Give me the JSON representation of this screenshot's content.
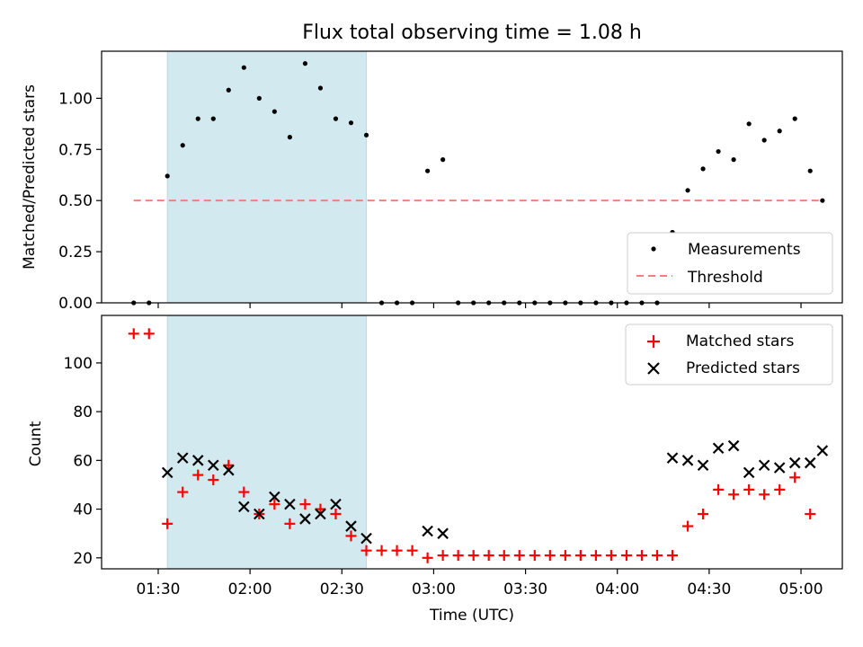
{
  "chart_data": {
    "type": "scatter",
    "title": "Flux total observing time = 1.08 h",
    "xlabel": "Time (UTC)",
    "x_tick_labels": [
      "01:30",
      "02:00",
      "02:30",
      "03:00",
      "03:30",
      "04:00",
      "04:30",
      "05:00"
    ],
    "x_ticks_min": [
      90,
      120,
      150,
      180,
      210,
      240,
      270,
      300
    ],
    "xlim_min": [
      71.5,
      313.5
    ],
    "shaded_span_min": [
      93,
      158
    ],
    "shade_color": "#d3e9f0",
    "top": {
      "ylabel": "Matched/Predicted stars",
      "ylim": [
        0,
        1.23
      ],
      "y_tick_values": [
        0.0,
        0.25,
        0.5,
        0.75,
        1.0
      ],
      "y_tick_labels": [
        "0.00",
        "0.25",
        "0.50",
        "0.75",
        "1.00"
      ],
      "threshold": {
        "name": "Threshold",
        "value": 0.5,
        "x_range_min": [
          82,
          307
        ],
        "color": "#f08080"
      },
      "measurements": {
        "name": "Measurements",
        "color": "#000000",
        "x_min": [
          82,
          87,
          93,
          98,
          103,
          108,
          113,
          118,
          123,
          128,
          133,
          138,
          143,
          148,
          153,
          158,
          163,
          168,
          173,
          178,
          183,
          188,
          193,
          198,
          203,
          208,
          213,
          218,
          223,
          228,
          233,
          238,
          243,
          248,
          253,
          258,
          263,
          268,
          273,
          278,
          283,
          288,
          293,
          298,
          303,
          307
        ],
        "y": [
          0.0,
          0.0,
          0.62,
          0.77,
          0.9,
          0.9,
          1.04,
          1.15,
          1.0,
          0.935,
          0.81,
          1.17,
          1.05,
          0.9,
          0.88,
          0.82,
          0.0,
          0.0,
          0.0,
          0.645,
          0.7,
          0.0,
          0.0,
          0.0,
          0.0,
          0.0,
          0.0,
          0.0,
          0.0,
          0.0,
          0.0,
          0.0,
          0.0,
          0.0,
          0.0,
          0.345,
          0.55,
          0.655,
          0.74,
          0.7,
          0.875,
          0.795,
          0.84,
          0.9,
          0.645,
          0.5
        ]
      },
      "legend_location": "lower right"
    },
    "bottom": {
      "ylabel": "Count",
      "ylim": [
        15.5,
        119.5
      ],
      "y_tick_values": [
        20,
        40,
        60,
        80,
        100
      ],
      "y_tick_labels": [
        "20",
        "40",
        "60",
        "80",
        "100"
      ],
      "series": [
        {
          "name": "Matched stars",
          "marker": "+",
          "color": "#ff0000",
          "x_min": [
            82,
            87,
            93,
            98,
            103,
            108,
            113,
            118,
            123,
            128,
            133,
            138,
            143,
            148,
            153,
            158,
            163,
            168,
            173,
            178,
            183,
            188,
            193,
            198,
            203,
            208,
            213,
            218,
            223,
            228,
            233,
            238,
            243,
            248,
            253,
            258,
            263,
            268,
            273,
            278,
            283,
            288,
            293,
            298,
            303
          ],
          "y": [
            112,
            112,
            34,
            47,
            54,
            52,
            58,
            47,
            38,
            42,
            34,
            42,
            40,
            38,
            29,
            23,
            23,
            23,
            23,
            20,
            21,
            21,
            21,
            21,
            21,
            21,
            21,
            21,
            21,
            21,
            21,
            21,
            21,
            21,
            21,
            21,
            33,
            38,
            48,
            46,
            48,
            46,
            48,
            53,
            38
          ]
        },
        {
          "name": "Predicted stars",
          "marker": "x",
          "color": "#000000",
          "x_min": [
            93,
            98,
            103,
            108,
            113,
            118,
            123,
            128,
            133,
            138,
            143,
            148,
            153,
            158,
            178,
            183,
            258,
            263,
            268,
            273,
            278,
            283,
            288,
            293,
            298,
            303,
            307
          ],
          "y": [
            55,
            61,
            60,
            58,
            56,
            41,
            38,
            45,
            42,
            36,
            38,
            42,
            33,
            28,
            31,
            30,
            61,
            60,
            58,
            65,
            66,
            55,
            58,
            57,
            59,
            59,
            64
          ]
        }
      ],
      "legend_location": "upper right"
    }
  }
}
